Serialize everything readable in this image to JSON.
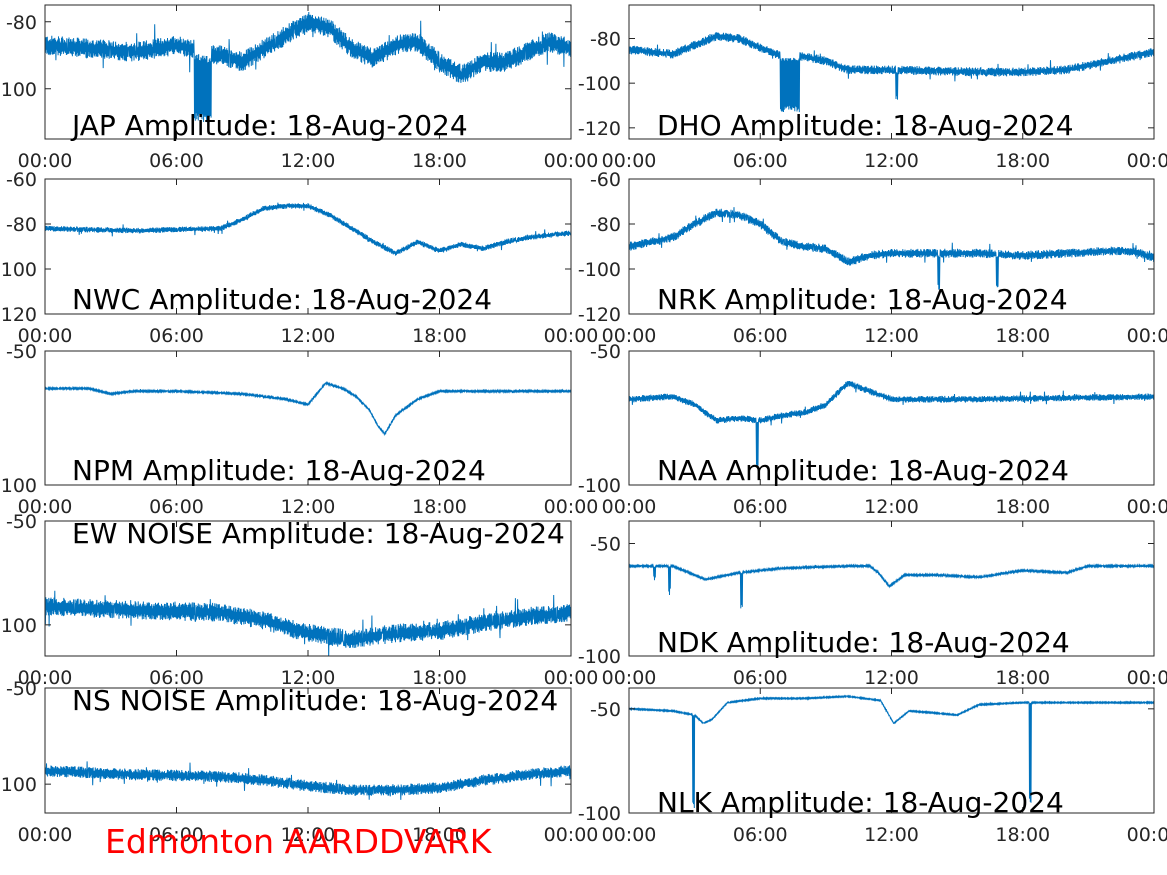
{
  "figure": {
    "station_label": "Edmonton AARDDVARK",
    "station_color": "#ff0000",
    "trace_color": "#0072bd"
  },
  "chart_data": [
    {
      "type": "line",
      "title": "JAP Amplitude: 18-Aug-2024",
      "x_ticks": [
        "00:00",
        "06:00",
        "12:00",
        "18:00",
        "00:00"
      ],
      "x_range_hours": [
        0,
        24
      ],
      "ylim": [
        -115,
        -75
      ],
      "y_ticks": [
        -80,
        -100
      ],
      "y_tick_labels": [
        "-80",
        "-100"
      ],
      "series": [
        {
          "baseline": [
            [
              0,
              -87
            ],
            [
              4,
              -89
            ],
            [
              6,
              -87
            ],
            [
              8,
              -90
            ],
            [
              9,
              -92
            ],
            [
              10,
              -88
            ],
            [
              11,
              -84
            ],
            [
              12,
              -80
            ],
            [
              13,
              -82
            ],
            [
              14,
              -88
            ],
            [
              15,
              -91
            ],
            [
              16,
              -87
            ],
            [
              17,
              -86
            ],
            [
              18,
              -92
            ],
            [
              19,
              -96
            ],
            [
              20,
              -92
            ],
            [
              21,
              -92
            ],
            [
              22,
              -89
            ],
            [
              23,
              -86
            ],
            [
              24,
              -88
            ]
          ],
          "noise": 6,
          "dips": [
            [
              6.8,
              7.6,
              -110
            ]
          ]
        }
      ]
    },
    {
      "type": "line",
      "title": "DHO Amplitude: 18-Aug-2024",
      "x_ticks": [
        "00:00",
        "06:00",
        "12:00",
        "18:00",
        "00:00"
      ],
      "x_range_hours": [
        0,
        24
      ],
      "ylim": [
        -125,
        -65
      ],
      "y_ticks": [
        -80,
        -100,
        -120
      ],
      "y_tick_labels": [
        "-80",
        "-100",
        "-120"
      ],
      "series": [
        {
          "baseline": [
            [
              0,
              -85
            ],
            [
              2,
              -87
            ],
            [
              3,
              -83
            ],
            [
              4,
              -79
            ],
            [
              5,
              -80
            ],
            [
              6,
              -84
            ],
            [
              7,
              -88
            ],
            [
              8,
              -88
            ],
            [
              9,
              -90
            ],
            [
              10,
              -94
            ],
            [
              12,
              -94
            ],
            [
              16,
              -95
            ],
            [
              18,
              -95
            ],
            [
              20,
              -94
            ],
            [
              22,
              -90
            ],
            [
              24,
              -86
            ]
          ],
          "noise": 4,
          "dips": [
            [
              6.9,
              7.8,
              -113
            ],
            [
              12.2,
              12.3,
              -108
            ]
          ]
        }
      ]
    },
    {
      "type": "line",
      "title": "NWC Amplitude: 18-Aug-2024",
      "x_ticks": [
        "00:00",
        "06:00",
        "12:00",
        "18:00",
        "00:00"
      ],
      "x_range_hours": [
        0,
        24
      ],
      "ylim": [
        -120,
        -60
      ],
      "y_ticks": [
        -60,
        -80,
        -100,
        -120
      ],
      "y_tick_labels": [
        "-60",
        "-80",
        "-100",
        "-120"
      ],
      "series": [
        {
          "baseline": [
            [
              0,
              -82
            ],
            [
              4,
              -83
            ],
            [
              8,
              -82
            ],
            [
              9,
              -78
            ],
            [
              10,
              -73
            ],
            [
              11,
              -72
            ],
            [
              12,
              -72
            ],
            [
              13,
              -76
            ],
            [
              14,
              -82
            ],
            [
              15,
              -88
            ],
            [
              16,
              -93
            ],
            [
              17,
              -88
            ],
            [
              18,
              -92
            ],
            [
              19,
              -89
            ],
            [
              20,
              -91
            ],
            [
              21,
              -88
            ],
            [
              22,
              -86
            ],
            [
              24,
              -84
            ]
          ],
          "noise": 2.5,
          "dips": []
        }
      ]
    },
    {
      "type": "line",
      "title": "NRK Amplitude: 18-Aug-2024",
      "x_ticks": [
        "00:00",
        "06:00",
        "12:00",
        "18:00",
        "00:00"
      ],
      "x_range_hours": [
        0,
        24
      ],
      "ylim": [
        -120,
        -60
      ],
      "y_ticks": [
        -60,
        -80,
        -100,
        -120
      ],
      "y_tick_labels": [
        "-60",
        "-80",
        "-100",
        "-120"
      ],
      "series": [
        {
          "baseline": [
            [
              0,
              -90
            ],
            [
              2,
              -86
            ],
            [
              3,
              -80
            ],
            [
              4,
              -75
            ],
            [
              5,
              -76
            ],
            [
              6,
              -80
            ],
            [
              7,
              -88
            ],
            [
              8,
              -90
            ],
            [
              9,
              -91
            ],
            [
              10,
              -97
            ],
            [
              11,
              -94
            ],
            [
              12,
              -93
            ],
            [
              14,
              -93
            ],
            [
              16,
              -93
            ],
            [
              18,
              -94
            ],
            [
              20,
              -93
            ],
            [
              22,
              -92
            ],
            [
              23,
              -92
            ],
            [
              24,
              -95
            ]
          ],
          "noise": 4,
          "dips": [
            [
              14.1,
              14.2,
              -110
            ],
            [
              16.8,
              16.9,
              -110
            ]
          ]
        }
      ]
    },
    {
      "type": "line",
      "title": "NPM Amplitude: 18-Aug-2024",
      "x_ticks": [
        "00:00",
        "06:00",
        "12:00",
        "18:00",
        "00:00"
      ],
      "x_range_hours": [
        0,
        24
      ],
      "ylim": [
        -100,
        -50
      ],
      "y_ticks": [
        -50,
        -100
      ],
      "y_tick_labels": [
        "-50",
        "-100"
      ],
      "series": [
        {
          "baseline": [
            [
              0,
              -64
            ],
            [
              2,
              -64
            ],
            [
              3,
              -66
            ],
            [
              4,
              -65
            ],
            [
              6,
              -65
            ],
            [
              9,
              -66
            ],
            [
              11,
              -68
            ],
            [
              12,
              -70
            ],
            [
              12.8,
              -62
            ],
            [
              13.6,
              -64
            ],
            [
              14.2,
              -67
            ],
            [
              14.8,
              -72
            ],
            [
              15.2,
              -78
            ],
            [
              15.5,
              -81
            ],
            [
              16,
              -74
            ],
            [
              17,
              -68
            ],
            [
              18,
              -65
            ],
            [
              24,
              -65
            ]
          ],
          "noise": 0.6,
          "dips": []
        }
      ]
    },
    {
      "type": "line",
      "title": "NAA Amplitude: 18-Aug-2024",
      "x_ticks": [
        "00:00",
        "06:00",
        "12:00",
        "18:00",
        "00:00"
      ],
      "x_range_hours": [
        0,
        24
      ],
      "ylim": [
        -100,
        -50
      ],
      "y_ticks": [
        -50,
        -100
      ],
      "y_tick_labels": [
        "-50",
        "-100"
      ],
      "series": [
        {
          "baseline": [
            [
              0,
              -68
            ],
            [
              2,
              -67
            ],
            [
              3,
              -70
            ],
            [
              4,
              -76
            ],
            [
              5,
              -75
            ],
            [
              6,
              -76
            ],
            [
              7,
              -74
            ],
            [
              8,
              -73
            ],
            [
              9,
              -70
            ],
            [
              10,
              -62
            ],
            [
              11,
              -65
            ],
            [
              12,
              -68
            ],
            [
              16,
              -68
            ],
            [
              24,
              -67
            ]
          ],
          "noise": 2.5,
          "dips": [
            [
              5.8,
              5.9,
              -94
            ]
          ]
        }
      ]
    },
    {
      "type": "line",
      "title": "EW NOISE Amplitude: 18-Aug-2024",
      "x_ticks": [
        "00:00",
        "06:00",
        "12:00",
        "18:00",
        "00:00"
      ],
      "x_range_hours": [
        0,
        24
      ],
      "ylim": [
        -115,
        -50
      ],
      "y_ticks": [
        -50,
        -100
      ],
      "y_tick_labels": [
        "-50",
        "-100"
      ],
      "series": [
        {
          "baseline": [
            [
              0,
              -91
            ],
            [
              4,
              -93
            ],
            [
              8,
              -94
            ],
            [
              10,
              -98
            ],
            [
              12,
              -104
            ],
            [
              14,
              -107
            ],
            [
              16,
              -104
            ],
            [
              18,
              -103
            ],
            [
              20,
              -99
            ],
            [
              22,
              -96
            ],
            [
              24,
              -94
            ]
          ],
          "noise": 9,
          "dips": []
        }
      ]
    },
    {
      "type": "line",
      "title": "NDK Amplitude: 18-Aug-2024",
      "x_ticks": [
        "00:00",
        "06:00",
        "12:00",
        "18:00",
        "00:00"
      ],
      "x_range_hours": [
        0,
        24
      ],
      "ylim": [
        -100,
        -40
      ],
      "y_ticks": [
        -50,
        -100
      ],
      "y_tick_labels": [
        "-50",
        "-100"
      ],
      "series": [
        {
          "baseline": [
            [
              0,
              -60
            ],
            [
              2,
              -60
            ],
            [
              3,
              -64
            ],
            [
              3.5,
              -66
            ],
            [
              4,
              -65
            ],
            [
              5,
              -63
            ],
            [
              7,
              -61
            ],
            [
              10,
              -60
            ],
            [
              11,
              -60
            ],
            [
              11.4,
              -63
            ],
            [
              11.9,
              -69
            ],
            [
              12.6,
              -64
            ],
            [
              14,
              -64
            ],
            [
              16,
              -65
            ],
            [
              18,
              -62
            ],
            [
              20,
              -63
            ],
            [
              21,
              -60
            ],
            [
              24,
              -60
            ]
          ],
          "noise": 0.8,
          "dips": [
            [
              1.1,
              1.2,
              -67
            ],
            [
              1.8,
              1.9,
              -73
            ],
            [
              5.1,
              5.2,
              -80
            ]
          ]
        }
      ]
    },
    {
      "type": "line",
      "title": "NS NOISE Amplitude: 18-Aug-2024",
      "x_ticks": [
        "00:00",
        "06:00",
        "12:00",
        "18:00",
        "00:00"
      ],
      "x_range_hours": [
        0,
        24
      ],
      "ylim": [
        -115,
        -50
      ],
      "y_ticks": [
        -50,
        -100
      ],
      "y_tick_labels": [
        "-50",
        "-100"
      ],
      "series": [
        {
          "baseline": [
            [
              0,
              -93
            ],
            [
              4,
              -95
            ],
            [
              8,
              -96
            ],
            [
              10,
              -98
            ],
            [
              12,
              -101
            ],
            [
              14,
              -103
            ],
            [
              16,
              -103
            ],
            [
              18,
              -102
            ],
            [
              20,
              -98
            ],
            [
              22,
              -95
            ],
            [
              24,
              -93
            ]
          ],
          "noise": 6,
          "dips": []
        }
      ]
    },
    {
      "type": "line",
      "title": "NLK Amplitude: 18-Aug-2024",
      "x_ticks": [
        "00:00",
        "06:00",
        "12:00",
        "18:00",
        "00:00"
      ],
      "x_range_hours": [
        0,
        24
      ],
      "ylim": [
        -100,
        -40
      ],
      "y_ticks": [
        -50,
        -100
      ],
      "y_tick_labels": [
        "-50",
        "-100"
      ],
      "series": [
        {
          "baseline": [
            [
              0,
              -50
            ],
            [
              2,
              -51
            ],
            [
              3,
              -53
            ],
            [
              3.4,
              -57
            ],
            [
              3.8,
              -55
            ],
            [
              4.5,
              -47
            ],
            [
              6,
              -45
            ],
            [
              8,
              -45
            ],
            [
              10,
              -44
            ],
            [
              11.5,
              -46
            ],
            [
              12.1,
              -57
            ],
            [
              12.8,
              -51
            ],
            [
              14,
              -52
            ],
            [
              15,
              -53
            ],
            [
              16,
              -48
            ],
            [
              18,
              -47
            ],
            [
              24,
              -47
            ]
          ],
          "noise": 0.6,
          "dips": [
            [
              2.9,
              3.0,
              -98
            ],
            [
              18.3,
              18.4,
              -96
            ]
          ]
        }
      ]
    }
  ]
}
